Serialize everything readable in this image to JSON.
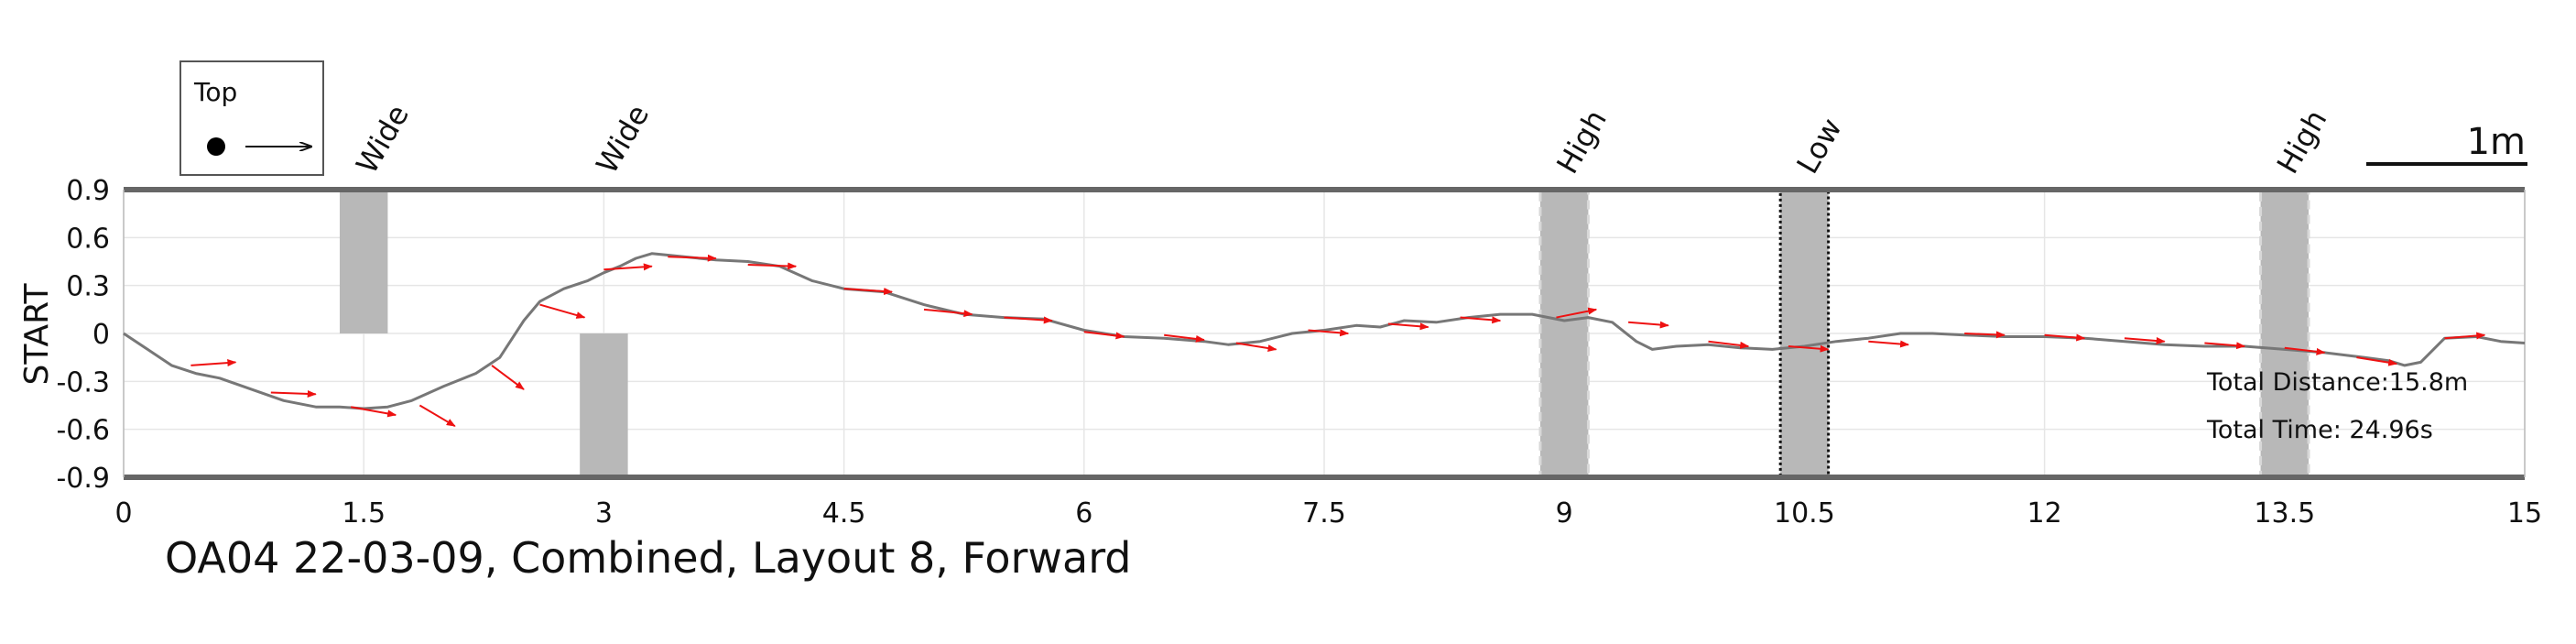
{
  "chart_data": {
    "type": "line",
    "title": "OA04 22-03-09, Combined, Layout 8, Forward",
    "ylabel": "START",
    "xlabel": "",
    "xlim": [
      0,
      15
    ],
    "ylim": [
      -0.9,
      0.9
    ],
    "x_ticks": [
      "0",
      "1.5",
      "3",
      "4.5",
      "6",
      "7.5",
      "9",
      "10.5",
      "12",
      "13.5",
      "15"
    ],
    "y_ticks": [
      "0.9",
      "0.6",
      "0.3",
      "0",
      "-0.3",
      "-0.6",
      "-0.9"
    ],
    "grid": true,
    "legend": {
      "placement": "top-left",
      "label": "Top"
    },
    "scale_bar": {
      "label": "1m",
      "length": 1
    },
    "annotations": {
      "total_distance": "Total Distance:15.8m",
      "total_time": "Total Time: 24.96s"
    },
    "obstacles": [
      {
        "label": "Wide",
        "x_start": 1.35,
        "x_end": 1.65,
        "y_start": 0,
        "y_end": 0.9,
        "style": "solid"
      },
      {
        "label": "Wide",
        "x_start": 2.85,
        "x_end": 3.15,
        "y_start": -0.9,
        "y_end": 0,
        "style": "solid"
      },
      {
        "label": "High",
        "x_start": 8.85,
        "x_end": 9.15,
        "y_start": -0.9,
        "y_end": 0.9,
        "style": "dashed"
      },
      {
        "label": "Low",
        "x_start": 10.35,
        "x_end": 10.65,
        "y_start": -0.9,
        "y_end": 0.9,
        "style": "dotted"
      },
      {
        "label": "High",
        "x_start": 13.35,
        "x_end": 13.65,
        "y_start": -0.9,
        "y_end": 0.9,
        "style": "dashed"
      }
    ],
    "series": [
      {
        "x": [
          0,
          0.15,
          0.3,
          0.45,
          0.6,
          0.8,
          1.0,
          1.2,
          1.35,
          1.5,
          1.65,
          1.8,
          2.0,
          2.2,
          2.35,
          2.5,
          2.6,
          2.75,
          2.9,
          3.0,
          3.1,
          3.2,
          3.3,
          3.5,
          3.7,
          3.9,
          4.1,
          4.3,
          4.5,
          4.75,
          5.0,
          5.25,
          5.5,
          5.75,
          6.0,
          6.25,
          6.5,
          6.75,
          6.9,
          7.1,
          7.3,
          7.5,
          7.7,
          7.85,
          8.0,
          8.2,
          8.4,
          8.6,
          8.8,
          9.0,
          9.15,
          9.3,
          9.45,
          9.55,
          9.7,
          9.9,
          10.1,
          10.3,
          10.5,
          10.7,
          10.9,
          11.1,
          11.3,
          11.5,
          11.75,
          12.0,
          12.25,
          12.5,
          12.75,
          13.0,
          13.25,
          13.5,
          13.75,
          14.0,
          14.15,
          14.25,
          14.35,
          14.5,
          14.7,
          14.85,
          15.0
        ],
        "y": [
          0,
          -0.1,
          -0.2,
          -0.25,
          -0.28,
          -0.35,
          -0.42,
          -0.46,
          -0.46,
          -0.47,
          -0.46,
          -0.42,
          -0.33,
          -0.25,
          -0.15,
          0.08,
          0.2,
          0.28,
          0.33,
          0.38,
          0.42,
          0.47,
          0.5,
          0.48,
          0.46,
          0.45,
          0.42,
          0.33,
          0.28,
          0.26,
          0.18,
          0.12,
          0.1,
          0.09,
          0.02,
          -0.02,
          -0.03,
          -0.05,
          -0.07,
          -0.05,
          0.0,
          0.02,
          0.05,
          0.04,
          0.08,
          0.07,
          0.1,
          0.12,
          0.12,
          0.08,
          0.1,
          0.07,
          -0.05,
          -0.1,
          -0.08,
          -0.07,
          -0.09,
          -0.1,
          -0.08,
          -0.05,
          -0.03,
          0.0,
          0.0,
          -0.01,
          -0.02,
          -0.02,
          -0.03,
          -0.05,
          -0.07,
          -0.08,
          -0.08,
          -0.1,
          -0.12,
          -0.15,
          -0.17,
          -0.2,
          -0.18,
          -0.03,
          -0.02,
          -0.05,
          -0.06
        ]
      }
    ],
    "arrows": [
      {
        "x": 0.42,
        "y": -0.2,
        "dx": 0.28,
        "dy": 0.02
      },
      {
        "x": 0.92,
        "y": -0.37,
        "dx": 0.28,
        "dy": -0.01
      },
      {
        "x": 1.42,
        "y": -0.46,
        "dx": 0.28,
        "dy": -0.05
      },
      {
        "x": 1.85,
        "y": -0.45,
        "dx": 0.22,
        "dy": -0.13
      },
      {
        "x": 2.3,
        "y": -0.2,
        "dx": 0.2,
        "dy": -0.15
      },
      {
        "x": 2.6,
        "y": 0.18,
        "dx": 0.28,
        "dy": -0.08
      },
      {
        "x": 3.0,
        "y": 0.4,
        "dx": 0.3,
        "dy": 0.02
      },
      {
        "x": 3.4,
        "y": 0.48,
        "dx": 0.3,
        "dy": -0.01
      },
      {
        "x": 3.9,
        "y": 0.43,
        "dx": 0.3,
        "dy": -0.01
      },
      {
        "x": 4.5,
        "y": 0.28,
        "dx": 0.3,
        "dy": -0.02
      },
      {
        "x": 5.0,
        "y": 0.15,
        "dx": 0.3,
        "dy": -0.03
      },
      {
        "x": 5.5,
        "y": 0.1,
        "dx": 0.3,
        "dy": -0.02
      },
      {
        "x": 6.0,
        "y": 0.01,
        "dx": 0.25,
        "dy": -0.03
      },
      {
        "x": 6.5,
        "y": -0.01,
        "dx": 0.25,
        "dy": -0.03
      },
      {
        "x": 6.95,
        "y": -0.06,
        "dx": 0.25,
        "dy": -0.04
      },
      {
        "x": 7.4,
        "y": 0.02,
        "dx": 0.25,
        "dy": -0.02
      },
      {
        "x": 7.9,
        "y": 0.06,
        "dx": 0.25,
        "dy": -0.02
      },
      {
        "x": 8.35,
        "y": 0.1,
        "dx": 0.25,
        "dy": -0.02
      },
      {
        "x": 8.95,
        "y": 0.1,
        "dx": 0.25,
        "dy": 0.05
      },
      {
        "x": 9.4,
        "y": 0.07,
        "dx": 0.25,
        "dy": -0.02
      },
      {
        "x": 9.9,
        "y": -0.05,
        "dx": 0.25,
        "dy": -0.03
      },
      {
        "x": 10.4,
        "y": -0.08,
        "dx": 0.25,
        "dy": -0.02
      },
      {
        "x": 10.9,
        "y": -0.05,
        "dx": 0.25,
        "dy": -0.02
      },
      {
        "x": 11.5,
        "y": 0.0,
        "dx": 0.25,
        "dy": -0.01
      },
      {
        "x": 12.0,
        "y": -0.01,
        "dx": 0.25,
        "dy": -0.02
      },
      {
        "x": 12.5,
        "y": -0.03,
        "dx": 0.25,
        "dy": -0.02
      },
      {
        "x": 13.0,
        "y": -0.06,
        "dx": 0.25,
        "dy": -0.02
      },
      {
        "x": 13.5,
        "y": -0.09,
        "dx": 0.25,
        "dy": -0.03
      },
      {
        "x": 13.95,
        "y": -0.15,
        "dx": 0.25,
        "dy": -0.04
      },
      {
        "x": 14.5,
        "y": -0.03,
        "dx": 0.25,
        "dy": 0.02
      }
    ],
    "colors": {
      "trajectory": "#777777",
      "arrows": "#ee1111",
      "obstacle": "#b8b8b8",
      "border": "#666666"
    }
  }
}
